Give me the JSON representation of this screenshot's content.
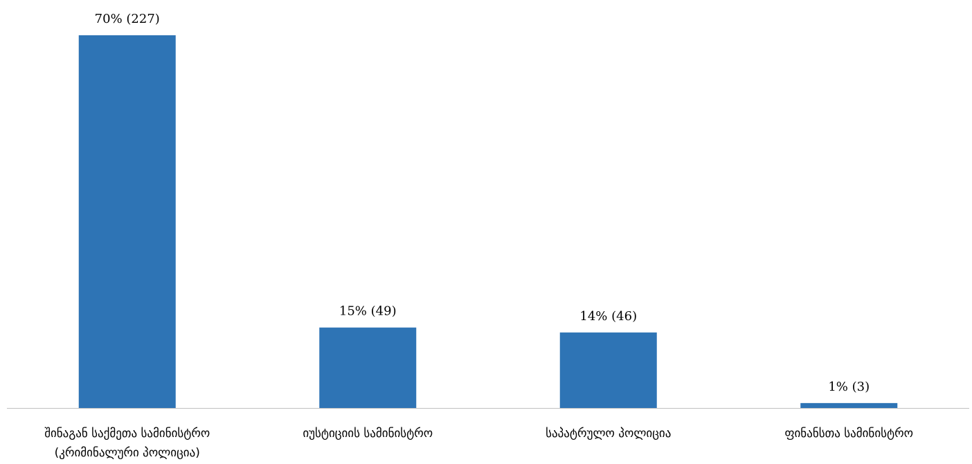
{
  "chart_data": {
    "type": "bar",
    "title": "",
    "xlabel": "",
    "ylabel": "",
    "ylim": [
      0,
      227
    ],
    "grid": false,
    "legend": "none",
    "bar_color": "#2E74B5",
    "axis_color": "#BFBFBF",
    "categories": [
      [
        "შინაგან საქმეთა სამინისტრო",
        "(კრიმინალური პოლიცია)"
      ],
      [
        "იუსტიციის სამინისტრო"
      ],
      [
        "საპატრულო პოლიცია"
      ],
      [
        "ფინანსთა სამინისტრო"
      ]
    ],
    "values": [
      227,
      49,
      46,
      3
    ],
    "percentages": [
      70,
      15,
      14,
      1
    ],
    "data_labels": [
      "70% (227)",
      "15% (49)",
      "14% (46)",
      "1% (3)"
    ]
  }
}
